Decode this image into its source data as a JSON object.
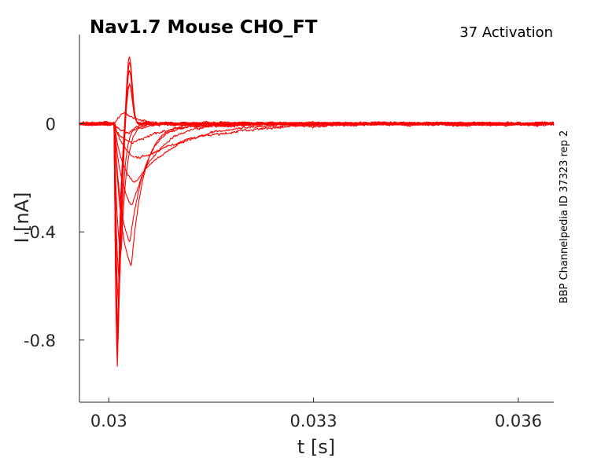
{
  "chart_data": {
    "type": "line",
    "title": "Nav1.7  Mouse  CHO_FT",
    "subtitle": "37  Activation",
    "side_note": "BBP Channelpedia ID 37323 rep 2",
    "xlabel": "t [s]",
    "ylabel": "I [nA]",
    "xlim": [
      0.02957,
      0.03652
    ],
    "ylim": [
      -1.03,
      0.33
    ],
    "xticks": [
      0.03,
      0.033,
      0.036
    ],
    "xtick_labels": [
      "0.03",
      "0.033",
      "0.036"
    ],
    "yticks": [
      0,
      -0.4,
      -0.8
    ],
    "ytick_labels": [
      "0",
      "-0.4",
      "-0.8"
    ],
    "grid": false,
    "series_color": "#ff0000",
    "series": [
      {
        "peak_time": 0.03013,
        "peak": -0.92,
        "tau": 4e-05
      },
      {
        "peak_time": 0.03013,
        "peak": -0.88,
        "tau": 4e-05
      },
      {
        "peak_time": 0.03013,
        "peak": -0.85,
        "tau": 4e-05
      },
      {
        "peak_time": 0.03014,
        "peak": -0.82,
        "tau": 4e-05
      },
      {
        "peak_time": 0.03014,
        "peak": -0.78,
        "tau": 4e-05
      },
      {
        "peak_time": 0.03015,
        "peak": -0.7,
        "tau": 5e-05
      },
      {
        "peak_time": 0.03016,
        "peak": -0.6,
        "tau": 6e-05
      },
      {
        "peak_time": 0.03018,
        "peak": -0.49,
        "tau": 8e-05
      },
      {
        "peak_time": 0.03033,
        "peak": -0.53,
        "tau": 0.00018
      },
      {
        "peak_time": 0.03031,
        "peak": -0.44,
        "tau": 0.00022
      },
      {
        "peak_time": 0.03034,
        "peak": -0.3,
        "tau": 0.00035
      },
      {
        "peak_time": 0.03038,
        "peak": -0.22,
        "tau": 0.0006
      },
      {
        "peak_time": 0.03045,
        "peak": -0.13,
        "tau": 0.0009
      },
      {
        "peak_time": 0.03035,
        "peak": -0.07,
        "tau": 0.0005
      },
      {
        "peak_time": 0.03028,
        "peak": -0.03,
        "tau": 0.0003
      },
      {
        "peak_time": 0.03025,
        "peak": 0.04,
        "tau": 0.0002
      }
    ]
  }
}
